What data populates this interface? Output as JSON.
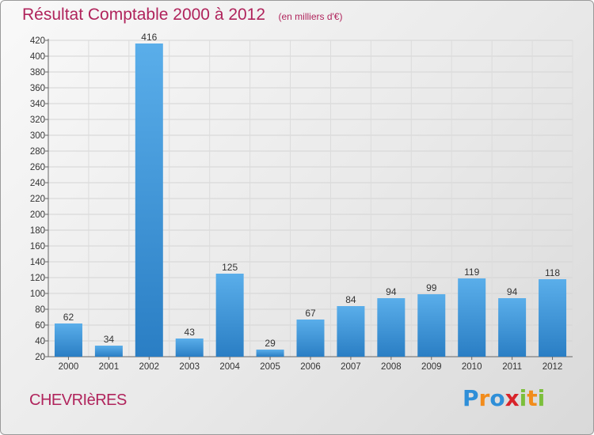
{
  "header": {
    "title": "Résultat Comptable 2000 à 2012",
    "subtitle": "(en milliers d'€)"
  },
  "footer": {
    "place": "CHEVRIèRES",
    "logo_letters": [
      "P",
      "r",
      "o",
      "x",
      "i",
      "t",
      "i"
    ],
    "logo_colors": [
      "#2f8fd8",
      "#f28c1c",
      "#2f8fd8",
      "#d8232a",
      "#7cbf3c",
      "#f28c1c",
      "#7cbf3c"
    ]
  },
  "colors": {
    "bar_light": "#5aaeea",
    "bar_dark": "#2a7ec4",
    "text": "#333333",
    "title": "#b0245c"
  },
  "chart_data": {
    "type": "bar",
    "title": "Résultat Comptable 2000 à 2012",
    "subtitle": "(en milliers d'€)",
    "xlabel": "",
    "ylabel": "",
    "categories": [
      "2000",
      "2001",
      "2002",
      "2003",
      "2004",
      "2005",
      "2006",
      "2007",
      "2008",
      "2009",
      "2010",
      "2011",
      "2012"
    ],
    "values": [
      62,
      34,
      416,
      43,
      125,
      29,
      67,
      84,
      94,
      99,
      119,
      94,
      118
    ],
    "ylim": [
      20,
      420
    ],
    "yticks": [
      20,
      40,
      60,
      80,
      100,
      120,
      140,
      160,
      180,
      200,
      220,
      240,
      260,
      280,
      300,
      320,
      340,
      360,
      380,
      400,
      420
    ],
    "grid": true,
    "legend": "none"
  }
}
